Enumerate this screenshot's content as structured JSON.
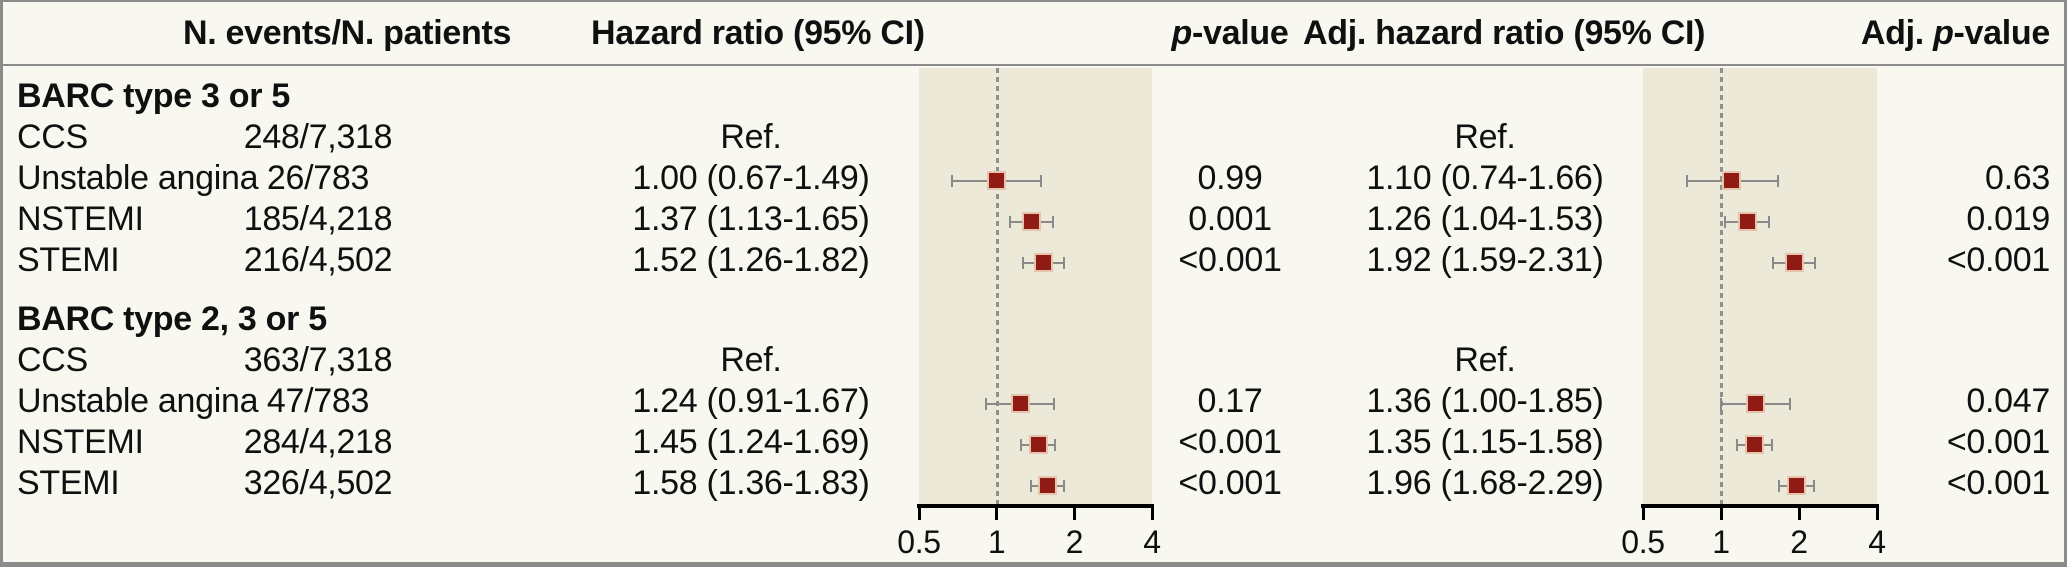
{
  "header": {
    "col_events": "N. events/N. patients",
    "col_hr": "Hazard ratio (95% CI)",
    "col_p": {
      "italic": "p",
      "rest": "-value"
    },
    "col_ahr": "Adj. hazard ratio (95% CI)",
    "col_ap": {
      "prefix": "Adj. ",
      "italic": "p",
      "rest": "-value"
    }
  },
  "axis": {
    "min": 0.5,
    "max": 4,
    "reference": 1,
    "ticks": [
      "0.5",
      "1",
      "2",
      "4"
    ],
    "scale": "log2"
  },
  "groups": [
    {
      "title": "BARC type 3 or 5",
      "rows": [
        {
          "label": "CCS",
          "events": "248/7,318",
          "hr_text": "Ref.",
          "p": "",
          "ahr_text": "Ref.",
          "ap": ""
        },
        {
          "label": "Unstable angina",
          "events": "26/783",
          "hr_text": "1.00 (0.67-1.49)",
          "hr": 1.0,
          "lo": 0.67,
          "hi": 1.49,
          "p": "0.99",
          "ahr_text": "1.10 (0.74-1.66)",
          "ahr": 1.1,
          "alo": 0.74,
          "ahi": 1.66,
          "ap": "0.63"
        },
        {
          "label": "NSTEMI",
          "events": "185/4,218",
          "hr_text": "1.37 (1.13-1.65)",
          "hr": 1.37,
          "lo": 1.13,
          "hi": 1.65,
          "p": "0.001",
          "ahr_text": "1.26 (1.04-1.53)",
          "ahr": 1.26,
          "alo": 1.04,
          "ahi": 1.53,
          "ap": "0.019"
        },
        {
          "label": "STEMI",
          "events": "216/4,502",
          "hr_text": "1.52 (1.26-1.82)",
          "hr": 1.52,
          "lo": 1.26,
          "hi": 1.82,
          "p": "<0.001",
          "ahr_text": "1.92 (1.59-2.31)",
          "ahr": 1.92,
          "alo": 1.59,
          "ahi": 2.31,
          "ap": "<0.001"
        }
      ]
    },
    {
      "title": "BARC type 2, 3 or 5",
      "rows": [
        {
          "label": "CCS",
          "events": "363/7,318",
          "hr_text": "Ref.",
          "p": "",
          "ahr_text": "Ref.",
          "ap": ""
        },
        {
          "label": "Unstable angina",
          "events": "47/783",
          "hr_text": "1.24 (0.91-1.67)",
          "hr": 1.24,
          "lo": 0.91,
          "hi": 1.67,
          "p": "0.17",
          "ahr_text": "1.36 (1.00-1.85)",
          "ahr": 1.36,
          "alo": 1.0,
          "ahi": 1.85,
          "ap": "0.047"
        },
        {
          "label": "NSTEMI",
          "events": "284/4,218",
          "hr_text": "1.45 (1.24-1.69)",
          "hr": 1.45,
          "lo": 1.24,
          "hi": 1.69,
          "p": "<0.001",
          "ahr_text": "1.35 (1.15-1.58)",
          "ahr": 1.35,
          "alo": 1.15,
          "ahi": 1.58,
          "ap": "<0.001"
        },
        {
          "label": "STEMI",
          "events": "326/4,502",
          "hr_text": "1.58 (1.36-1.83)",
          "hr": 1.58,
          "lo": 1.36,
          "hi": 1.83,
          "p": "<0.001",
          "ahr_text": "1.96 (1.68-2.29)",
          "ahr": 1.96,
          "alo": 1.68,
          "ahi": 2.29,
          "ap": "<0.001"
        }
      ]
    }
  ],
  "chart_data": [
    {
      "type": "scatter",
      "title": "Hazard ratio (95% CI)",
      "xscale": "log2",
      "xlim": [
        0.5,
        4
      ],
      "xticks": [
        0.5,
        1,
        2,
        4
      ],
      "reference_line": 1,
      "series": [
        {
          "name": "BARC type 3 or 5",
          "points": [
            {
              "label": "Unstable angina",
              "hr": 1.0,
              "ci": [
                0.67,
                1.49
              ]
            },
            {
              "label": "NSTEMI",
              "hr": 1.37,
              "ci": [
                1.13,
                1.65
              ]
            },
            {
              "label": "STEMI",
              "hr": 1.52,
              "ci": [
                1.26,
                1.82
              ]
            }
          ]
        },
        {
          "name": "BARC type 2, 3 or 5",
          "points": [
            {
              "label": "Unstable angina",
              "hr": 1.24,
              "ci": [
                0.91,
                1.67
              ]
            },
            {
              "label": "NSTEMI",
              "hr": 1.45,
              "ci": [
                1.24,
                1.69
              ]
            },
            {
              "label": "STEMI",
              "hr": 1.58,
              "ci": [
                1.36,
                1.83
              ]
            }
          ]
        }
      ]
    },
    {
      "type": "scatter",
      "title": "Adj. hazard ratio (95% CI)",
      "xscale": "log2",
      "xlim": [
        0.5,
        4
      ],
      "xticks": [
        0.5,
        1,
        2,
        4
      ],
      "reference_line": 1,
      "series": [
        {
          "name": "BARC type 3 or 5",
          "points": [
            {
              "label": "Unstable angina",
              "hr": 1.1,
              "ci": [
                0.74,
                1.66
              ]
            },
            {
              "label": "NSTEMI",
              "hr": 1.26,
              "ci": [
                1.04,
                1.53
              ]
            },
            {
              "label": "STEMI",
              "hr": 1.92,
              "ci": [
                1.59,
                2.31
              ]
            }
          ]
        },
        {
          "name": "BARC type 2, 3 or 5",
          "points": [
            {
              "label": "Unstable angina",
              "hr": 1.36,
              "ci": [
                1.0,
                1.85
              ]
            },
            {
              "label": "NSTEMI",
              "hr": 1.35,
              "ci": [
                1.15,
                1.58
              ]
            },
            {
              "label": "STEMI",
              "hr": 1.96,
              "ci": [
                1.68,
                2.29
              ]
            }
          ]
        }
      ]
    }
  ],
  "colors": {
    "bg": "#f9f8f0",
    "plot_bg": "#ece9d8",
    "marker": "#8f1b14",
    "marker_border": "#e7c3ae",
    "whisker": "#8a8a8a",
    "ref_line": "#8f8f8f",
    "axis": "#000000",
    "text": "#101010",
    "frame": "#8b8b8b"
  }
}
